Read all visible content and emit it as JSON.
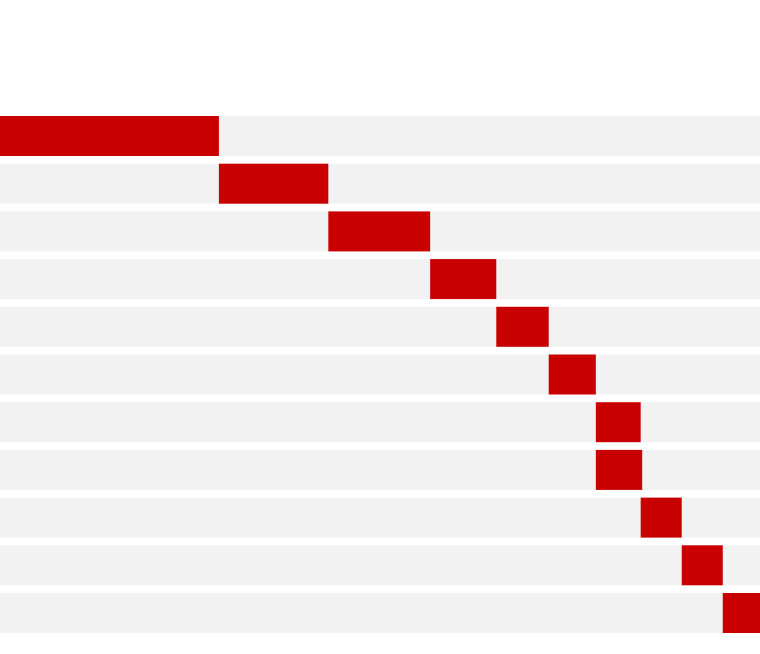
{
  "chart_data": {
    "type": "range-bar",
    "starts": [
      0,
      28.8,
      43.2,
      56.6,
      65.3,
      72.2,
      78.4,
      78.4,
      84.3,
      89.7,
      95.1
    ],
    "ends": [
      28.8,
      43.2,
      56.6,
      65.3,
      72.2,
      78.4,
      84.3,
      84.5,
      89.7,
      95.1,
      100
    ],
    "xlim": [
      0,
      100
    ],
    "color": "#c80000",
    "track_color": "#f2f2f2"
  }
}
